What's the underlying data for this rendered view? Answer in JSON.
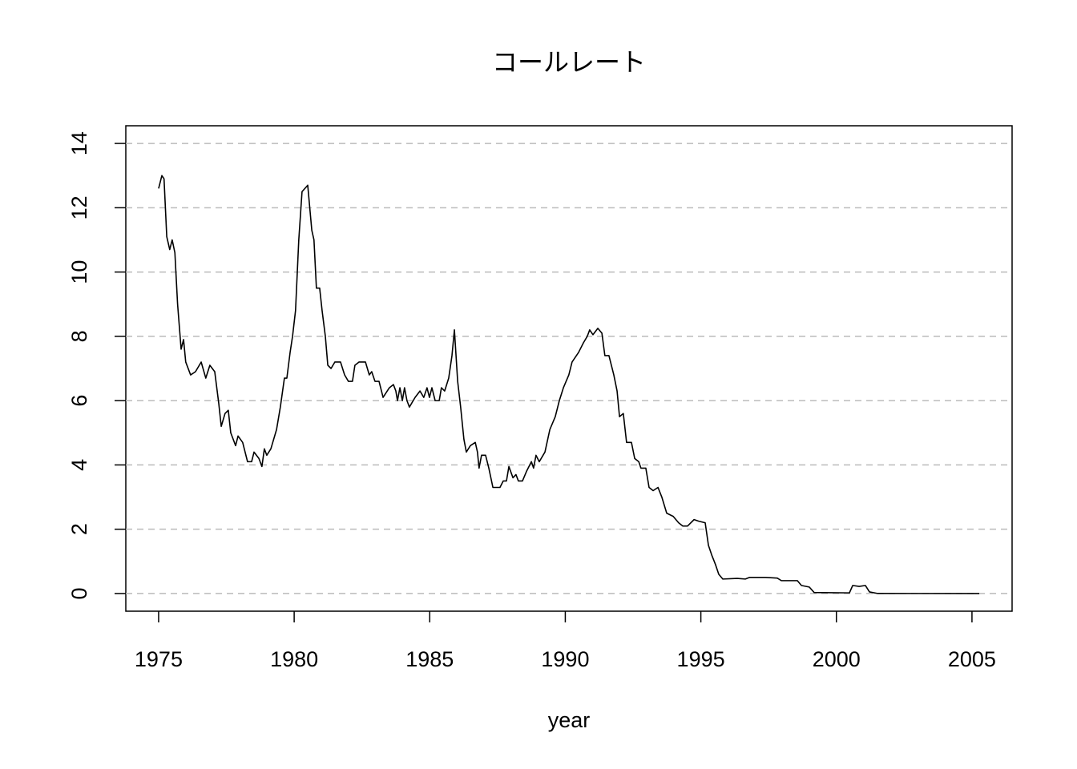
{
  "chart_data": {
    "type": "line",
    "title": "コールレート",
    "xlabel": "year",
    "x": [
      1975.0,
      1975.12,
      1975.2,
      1975.3,
      1975.41,
      1975.5,
      1975.6,
      1975.7,
      1975.83,
      1975.92,
      1976.0,
      1976.18,
      1976.36,
      1976.57,
      1976.74,
      1976.89,
      1977.07,
      1977.22,
      1977.31,
      1977.45,
      1977.57,
      1977.66,
      1977.84,
      1977.93,
      1978.1,
      1978.28,
      1978.43,
      1978.52,
      1978.7,
      1978.81,
      1978.9,
      1978.99,
      1979.14,
      1979.35,
      1979.49,
      1979.64,
      1979.73,
      1979.85,
      1979.94,
      1980.05,
      1980.17,
      1980.29,
      1980.5,
      1980.65,
      1980.73,
      1980.82,
      1980.94,
      1981.03,
      1981.15,
      1981.24,
      1981.36,
      1981.5,
      1981.71,
      1981.86,
      1982.0,
      1982.15,
      1982.24,
      1982.39,
      1982.63,
      1982.77,
      1982.86,
      1982.98,
      1983.13,
      1983.28,
      1983.51,
      1983.66,
      1983.75,
      1983.81,
      1983.9,
      1983.99,
      1984.07,
      1984.16,
      1984.25,
      1984.46,
      1984.64,
      1984.78,
      1984.9,
      1984.99,
      1985.08,
      1985.2,
      1985.35,
      1985.43,
      1985.55,
      1985.7,
      1985.82,
      1985.91,
      1986.03,
      1986.14,
      1986.26,
      1986.35,
      1986.5,
      1986.68,
      1986.76,
      1986.82,
      1986.91,
      1987.06,
      1987.18,
      1987.33,
      1987.59,
      1987.71,
      1987.83,
      1987.92,
      1988.07,
      1988.18,
      1988.27,
      1988.42,
      1988.57,
      1988.75,
      1988.83,
      1988.92,
      1989.04,
      1989.25,
      1989.43,
      1989.63,
      1989.78,
      1989.93,
      1990.13,
      1990.25,
      1990.49,
      1990.67,
      1990.81,
      1990.9,
      1991.02,
      1991.2,
      1991.35,
      1991.46,
      1991.61,
      1991.79,
      1991.91,
      1992.0,
      1992.14,
      1992.26,
      1992.44,
      1992.56,
      1992.71,
      1992.79,
      1992.97,
      1993.09,
      1993.24,
      1993.42,
      1993.56,
      1993.74,
      1993.98,
      1994.18,
      1994.33,
      1994.51,
      1994.75,
      1994.92,
      1995.16,
      1995.28,
      1995.4,
      1995.54,
      1995.66,
      1995.81,
      1996.34,
      1996.64,
      1996.79,
      1997.38,
      1997.82,
      1997.97,
      1998.56,
      1998.71,
      1999.0,
      1999.18,
      2000.48,
      2000.6,
      2000.84,
      2001.07,
      2001.22,
      2001.52,
      2005.27
    ],
    "values": [
      12.6,
      13.0,
      12.9,
      11.1,
      10.7,
      11.0,
      10.6,
      9.0,
      7.6,
      7.9,
      7.2,
      6.8,
      6.9,
      7.2,
      6.7,
      7.1,
      6.9,
      5.9,
      5.2,
      5.6,
      5.7,
      5.0,
      4.6,
      4.9,
      4.7,
      4.1,
      4.1,
      4.4,
      4.2,
      3.95,
      4.5,
      4.3,
      4.5,
      5.1,
      5.8,
      6.7,
      6.7,
      7.5,
      8.0,
      8.8,
      11.0,
      12.5,
      12.7,
      11.3,
      11.0,
      9.5,
      9.5,
      8.8,
      8.0,
      7.1,
      7.0,
      7.2,
      7.2,
      6.8,
      6.6,
      6.6,
      7.1,
      7.2,
      7.2,
      6.8,
      6.9,
      6.6,
      6.6,
      6.1,
      6.4,
      6.5,
      6.3,
      6.0,
      6.4,
      6.0,
      6.4,
      6.0,
      5.8,
      6.1,
      6.3,
      6.1,
      6.4,
      6.1,
      6.4,
      6.0,
      6.0,
      6.4,
      6.3,
      6.7,
      7.4,
      8.2,
      6.6,
      5.8,
      4.8,
      4.4,
      4.6,
      4.7,
      4.4,
      3.9,
      4.3,
      4.3,
      3.9,
      3.3,
      3.3,
      3.5,
      3.5,
      3.95,
      3.6,
      3.7,
      3.5,
      3.5,
      3.8,
      4.1,
      3.9,
      4.3,
      4.1,
      4.4,
      5.1,
      5.5,
      6.0,
      6.4,
      6.8,
      7.2,
      7.5,
      7.8,
      8.0,
      8.2,
      8.05,
      8.25,
      8.1,
      7.4,
      7.4,
      6.8,
      6.3,
      5.5,
      5.6,
      4.7,
      4.7,
      4.2,
      4.1,
      3.9,
      3.9,
      3.3,
      3.2,
      3.3,
      3.0,
      2.5,
      2.4,
      2.2,
      2.1,
      2.1,
      2.3,
      2.25,
      2.2,
      1.5,
      1.2,
      0.9,
      0.6,
      0.45,
      0.47,
      0.45,
      0.5,
      0.5,
      0.48,
      0.4,
      0.4,
      0.25,
      0.2,
      0.03,
      0.02,
      0.25,
      0.22,
      0.25,
      0.05,
      0.002,
      0.001
    ],
    "color": "#000000",
    "xlim": [
      1973.79,
      2006.48
    ],
    "xticks": [
      1975,
      1980,
      1985,
      1990,
      1995,
      2000,
      2005
    ],
    "ylim": [
      -0.55,
      14.55
    ],
    "yticks": [
      0,
      2,
      4,
      6,
      8,
      10,
      12,
      14
    ],
    "grid": true
  }
}
